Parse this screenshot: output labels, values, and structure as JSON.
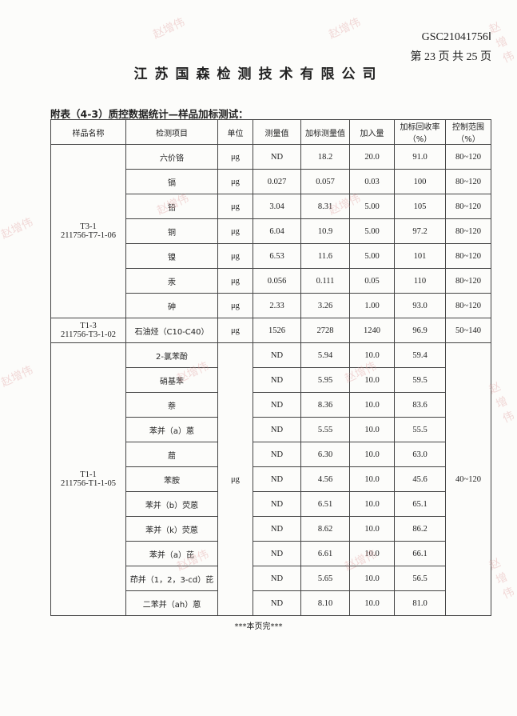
{
  "header": {
    "doc_no": "GSC21041756Ⅰ",
    "page_no": "第 23 页 共 25 页",
    "company": "江苏国森检测技术有限公司"
  },
  "caption": "附表（4-3）质控数据统计—样品加标测试：",
  "columns": [
    "样品名称",
    "检测项目",
    "单位",
    "测量值",
    "加标测量值",
    "加入量",
    "加标回收率（%）",
    "控制范围（%）"
  ],
  "groups": [
    {
      "sample": "T3-1\n211756-T7-1-06",
      "unit": "μg",
      "range": null,
      "rows": [
        {
          "item": "六价铬",
          "value": "ND",
          "spiked": "18.2",
          "added": "20.0",
          "recovery": "91.0",
          "range": "80~120"
        },
        {
          "item": "镉",
          "value": "0.027",
          "spiked": "0.057",
          "added": "0.03",
          "recovery": "100",
          "range": "80~120"
        },
        {
          "item": "铅",
          "value": "3.04",
          "spiked": "8.31",
          "added": "5.00",
          "recovery": "105",
          "range": "80~120"
        },
        {
          "item": "铜",
          "value": "6.04",
          "spiked": "10.9",
          "added": "5.00",
          "recovery": "97.2",
          "range": "80~120"
        },
        {
          "item": "镍",
          "value": "6.53",
          "spiked": "11.6",
          "added": "5.00",
          "recovery": "101",
          "range": "80~120"
        },
        {
          "item": "汞",
          "value": "0.056",
          "spiked": "0.111",
          "added": "0.05",
          "recovery": "110",
          "range": "80~120"
        },
        {
          "item": "砷",
          "value": "2.33",
          "spiked": "3.26",
          "added": "1.00",
          "recovery": "93.0",
          "range": "80~120"
        }
      ]
    },
    {
      "sample": "T1-3\n211756-T3-1-02",
      "unit": "μg",
      "range": null,
      "rows": [
        {
          "item": "石油烃（C10-C40）",
          "value": "1526",
          "spiked": "2728",
          "added": "1240",
          "recovery": "96.9",
          "range": "50~140"
        }
      ]
    },
    {
      "sample": "T1-1\n211756-T1-1-05",
      "unit": "μg",
      "range": "40~120",
      "rows": [
        {
          "item": "2-氯苯酚",
          "value": "ND",
          "spiked": "5.94",
          "added": "10.0",
          "recovery": "59.4"
        },
        {
          "item": "硝基苯",
          "value": "ND",
          "spiked": "5.95",
          "added": "10.0",
          "recovery": "59.5"
        },
        {
          "item": "萘",
          "value": "ND",
          "spiked": "8.36",
          "added": "10.0",
          "recovery": "83.6"
        },
        {
          "item": "苯并（a）蒽",
          "value": "ND",
          "spiked": "5.55",
          "added": "10.0",
          "recovery": "55.5"
        },
        {
          "item": "䓛",
          "value": "ND",
          "spiked": "6.30",
          "added": "10.0",
          "recovery": "63.0"
        },
        {
          "item": "苯胺",
          "value": "ND",
          "spiked": "4.56",
          "added": "10.0",
          "recovery": "45.6"
        },
        {
          "item": "苯并（b）荧蒽",
          "value": "ND",
          "spiked": "6.51",
          "added": "10.0",
          "recovery": "65.1"
        },
        {
          "item": "苯并（k）荧蒽",
          "value": "ND",
          "spiked": "8.62",
          "added": "10.0",
          "recovery": "86.2"
        },
        {
          "item": "苯并（a）芘",
          "value": "ND",
          "spiked": "6.61",
          "added": "10.0",
          "recovery": "66.1"
        },
        {
          "item": "茚并（1，2，3-cd）芘",
          "value": "ND",
          "spiked": "5.65",
          "added": "10.0",
          "recovery": "56.5"
        },
        {
          "item": "二苯并（ah）蒽",
          "value": "ND",
          "spiked": "8.10",
          "added": "10.0",
          "recovery": "81.0"
        }
      ]
    }
  ],
  "footer": "***本页完***",
  "watermark": "赵增伟"
}
